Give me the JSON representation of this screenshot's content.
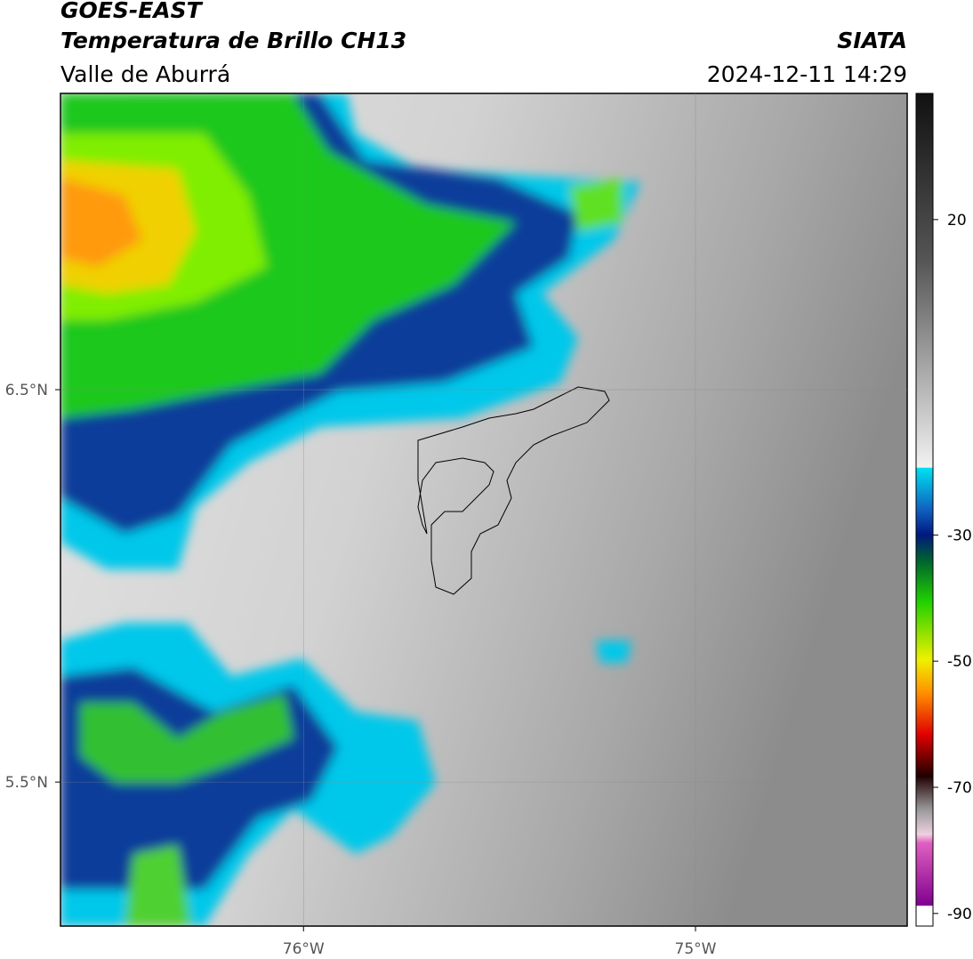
{
  "header": {
    "title": "GOES-EAST",
    "subtitle": "Temperatura de Brillo CH13",
    "region": "Valle de Aburrá",
    "source": "SIATA",
    "datetime": "2024-12-11 14:29"
  },
  "map": {
    "xlim": [
      -76.62,
      -74.46
    ],
    "ylim": [
      5.133,
      7.255
    ],
    "xticks": [
      {
        "value": -76,
        "label": "76°W"
      },
      {
        "value": -75,
        "label": "75°W"
      }
    ],
    "yticks": [
      {
        "value": 6.5,
        "label": "6.5°N"
      },
      {
        "value": 5.5,
        "label": "5.5°N"
      }
    ],
    "grid": true
  },
  "colorbar": {
    "lim": [
      -92,
      40
    ],
    "ticks": [
      20,
      -30,
      -50,
      -70,
      -90
    ]
  }
}
